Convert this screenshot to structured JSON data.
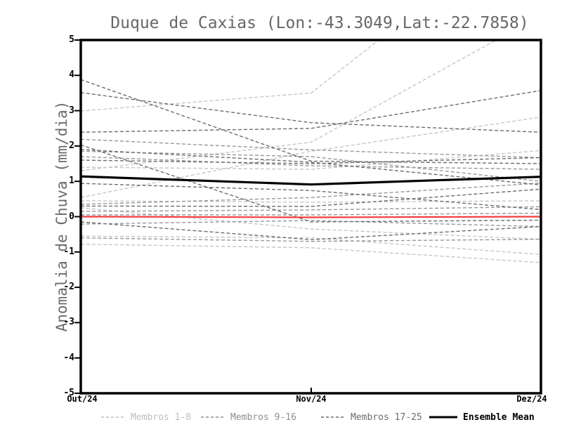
{
  "chart_data": {
    "type": "line",
    "title": "Duque de Caxias (Lon:-43.3049,Lat:-22.7858)",
    "ylabel": "Anomalia de Chuva (mm/dia)",
    "ylim": [
      -5,
      5
    ],
    "yticks": [
      5,
      4,
      3,
      2,
      1,
      0,
      -1,
      -2,
      -3,
      -4,
      -5
    ],
    "x_labels": [
      "Out/24",
      "Nov/24",
      "Dez/24"
    ],
    "grid": false,
    "legend_position": "bottom",
    "group_colors": {
      "light": "#c6c6c6",
      "medium": "#989898",
      "dark": "#6d6d6d"
    },
    "series": [
      {
        "name": "Membro 1",
        "group": "light",
        "values": [
          2.99,
          3.5,
          8.6
        ]
      },
      {
        "name": "Membro 2",
        "group": "light",
        "values": [
          1.3,
          2.11,
          5.7
        ]
      },
      {
        "name": "Membro 3",
        "group": "light",
        "values": [
          1.4,
          1.34,
          1.87
        ]
      },
      {
        "name": "Membro 4",
        "group": "light",
        "values": [
          0.54,
          1.85,
          2.82
        ]
      },
      {
        "name": "Membro 5",
        "group": "light",
        "values": [
          0.45,
          0.41,
          0.45
        ]
      },
      {
        "name": "Membro 6",
        "group": "light",
        "values": [
          0.25,
          -0.35,
          -0.64
        ]
      },
      {
        "name": "Membro 7",
        "group": "light",
        "values": [
          -0.55,
          -0.6,
          -1.07
        ]
      },
      {
        "name": "Membro 8",
        "group": "light",
        "values": [
          -0.78,
          -0.88,
          -1.3
        ]
      },
      {
        "name": "Membro 9",
        "group": "medium",
        "values": [
          2.19,
          1.89,
          1.67
        ]
      },
      {
        "name": "Membro 10",
        "group": "medium",
        "values": [
          1.85,
          1.7,
          1.0
        ]
      },
      {
        "name": "Membro 11",
        "group": "medium",
        "values": [
          1.7,
          1.44,
          1.34
        ]
      },
      {
        "name": "Membro 12",
        "group": "medium",
        "values": [
          0.35,
          0.54,
          0.95
        ]
      },
      {
        "name": "Membro 13",
        "group": "medium",
        "values": [
          0.15,
          0.19,
          0.28
        ]
      },
      {
        "name": "Membro 14",
        "group": "medium",
        "values": [
          0.05,
          0.05,
          0.1
        ]
      },
      {
        "name": "Membro 15",
        "group": "medium",
        "values": [
          -0.21,
          -0.11,
          -0.28
        ]
      },
      {
        "name": "Membro 16",
        "group": "medium",
        "values": [
          -0.6,
          -0.7,
          -0.64
        ]
      },
      {
        "name": "Membro 17",
        "group": "dark",
        "values": [
          3.88,
          1.57,
          1.5
        ]
      },
      {
        "name": "Membro 18",
        "group": "dark",
        "values": [
          3.51,
          2.66,
          2.39
        ]
      },
      {
        "name": "Membro 19",
        "group": "dark",
        "values": [
          2.39,
          2.5,
          3.57
        ]
      },
      {
        "name": "Membro 20",
        "group": "dark",
        "values": [
          2.03,
          -0.15,
          -0.1
        ]
      },
      {
        "name": "Membro 21",
        "group": "dark",
        "values": [
          1.9,
          1.54,
          0.9
        ]
      },
      {
        "name": "Membro 22",
        "group": "dark",
        "values": [
          1.6,
          1.5,
          1.67
        ]
      },
      {
        "name": "Membro 23",
        "group": "dark",
        "values": [
          0.94,
          0.74,
          0.2
        ]
      },
      {
        "name": "Membro 24",
        "group": "dark",
        "values": [
          0.3,
          0.29,
          0.78
        ]
      },
      {
        "name": "Membro 25",
        "group": "dark",
        "values": [
          -0.15,
          -0.65,
          -0.28
        ]
      }
    ],
    "ensemble_mean": {
      "name": "Ensemble Mean",
      "values": [
        1.14,
        0.91,
        1.13
      ],
      "color": "#000000"
    },
    "zero_line": {
      "values": [
        0.0,
        -0.02,
        0.0
      ],
      "color": "#f23b3b"
    }
  },
  "legend": {
    "items": [
      {
        "label": "Membros 1-8",
        "color": "#bdbdbd",
        "style": "dashed"
      },
      {
        "label": "Membros 9-16",
        "color": "#8f8f8f",
        "style": "dashed"
      },
      {
        "label": "Membros 17-25",
        "color": "#6d6d6d",
        "style": "dashed"
      },
      {
        "label": "Ensemble Mean",
        "color": "#000000",
        "style": "solid"
      }
    ]
  }
}
